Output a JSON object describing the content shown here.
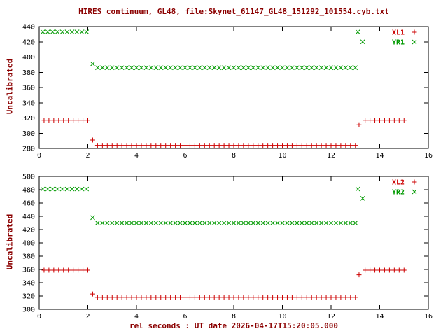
{
  "title": "HIRES continuum, GL48, file:Skynet_61147_GL48_151292_101554.cyb.txt",
  "xlabel": "rel seconds : UT date 2026-04-17T15:20:05.000",
  "colors": {
    "label": "#8b0000",
    "tick_text": "#000000",
    "border": "#000000",
    "series_red": "#cc0000",
    "series_green": "#009900",
    "background": "#ffffff"
  },
  "chart_data": [
    {
      "type": "scatter",
      "panel": "top",
      "ylabel": "Uncalibrated",
      "xlim": [
        0,
        16
      ],
      "ylim": [
        280,
        440
      ],
      "xticks": [
        0,
        2,
        4,
        6,
        8,
        10,
        12,
        14,
        16
      ],
      "yticks": [
        280,
        300,
        320,
        340,
        360,
        380,
        400,
        420,
        440
      ],
      "grid": false,
      "legend_position": "top-right",
      "series": [
        {
          "name": "XL1",
          "marker": "plus",
          "color": "#cc0000",
          "segments": [
            {
              "x0": 0.2,
              "dx": 0.2,
              "n": 10,
              "y": 317
            },
            {
              "x0": 2.2,
              "dx": 0,
              "n": 1,
              "y": 291
            },
            {
              "x0": 2.4,
              "dx": 0.2,
              "n": 54,
              "y": 284
            },
            {
              "points": [
                [
                  13.15,
                  311
                ]
              ]
            },
            {
              "x0": 13.4,
              "dx": 0.2,
              "n": 9,
              "y": 317
            }
          ]
        },
        {
          "name": "YR1",
          "marker": "cross",
          "color": "#009900",
          "segments": [
            {
              "x0": 0.15,
              "dx": 0.2,
              "n": 10,
              "y": 433
            },
            {
              "x0": 2.2,
              "dx": 0,
              "n": 1,
              "y": 391
            },
            {
              "x0": 2.4,
              "dx": 0.2,
              "n": 54,
              "y": 386
            },
            {
              "points": [
                [
                  13.1,
                  433
                ],
                [
                  13.3,
                  420
                ]
              ]
            }
          ]
        }
      ]
    },
    {
      "type": "scatter",
      "panel": "bottom",
      "ylabel": "Uncalibrated",
      "xlim": [
        0,
        16
      ],
      "ylim": [
        300,
        500
      ],
      "xticks": [
        0,
        2,
        4,
        6,
        8,
        10,
        12,
        14,
        16
      ],
      "yticks": [
        300,
        320,
        340,
        360,
        380,
        400,
        420,
        440,
        460,
        480,
        500
      ],
      "grid": false,
      "legend_position": "top-right",
      "series": [
        {
          "name": "XL2",
          "marker": "plus",
          "color": "#cc0000",
          "segments": [
            {
              "x0": 0.2,
              "dx": 0.2,
              "n": 10,
              "y": 359
            },
            {
              "x0": 2.2,
              "dx": 0,
              "n": 1,
              "y": 323
            },
            {
              "x0": 2.4,
              "dx": 0.2,
              "n": 54,
              "y": 318
            },
            {
              "points": [
                [
                  13.15,
                  352
                ]
              ]
            },
            {
              "x0": 13.4,
              "dx": 0.2,
              "n": 9,
              "y": 359
            }
          ]
        },
        {
          "name": "YR2",
          "marker": "cross",
          "color": "#009900",
          "segments": [
            {
              "x0": 0.15,
              "dx": 0.2,
              "n": 10,
              "y": 481
            },
            {
              "x0": 2.2,
              "dx": 0,
              "n": 1,
              "y": 438
            },
            {
              "x0": 2.4,
              "dx": 0.2,
              "n": 54,
              "y": 430
            },
            {
              "points": [
                [
                  13.1,
                  481
                ],
                [
                  13.3,
                  467
                ]
              ]
            }
          ]
        }
      ]
    }
  ]
}
